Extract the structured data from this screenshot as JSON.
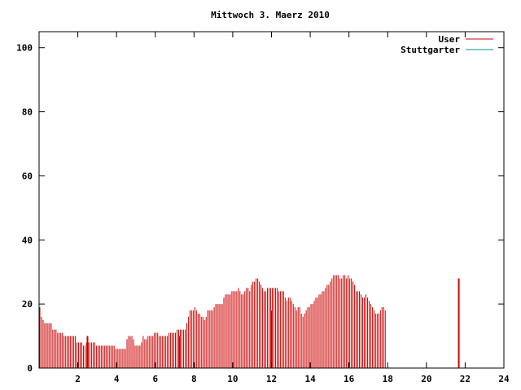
{
  "chart_data": {
    "type": "bar",
    "title": "Mittwoch 3. Maerz 2010",
    "xlabel": "",
    "ylabel": "",
    "xlim": [
      0,
      24
    ],
    "ylim": [
      0,
      105
    ],
    "x_ticks": [
      2,
      4,
      6,
      8,
      10,
      12,
      14,
      16,
      18,
      20,
      22,
      24
    ],
    "y_ticks": [
      0,
      20,
      40,
      60,
      80,
      100
    ],
    "x_tick_labels": [
      "2",
      "4",
      "6",
      "8",
      "10",
      "12",
      "14",
      "16",
      "18",
      "20",
      "22",
      "24"
    ],
    "y_tick_labels": [
      "0",
      "20",
      "40",
      "60",
      "80",
      "100"
    ],
    "legend_position": "top-right",
    "grid": false,
    "bar_interval_hours": 0.08333,
    "series": [
      {
        "name": "User",
        "color": "#cc0000",
        "values": [
          19,
          16,
          15,
          14,
          14,
          14,
          14,
          14,
          12,
          12,
          12,
          11,
          11,
          11,
          11,
          10,
          10,
          10,
          10,
          10,
          10,
          10,
          10,
          8,
          8,
          8,
          8,
          7,
          7,
          8,
          8,
          8,
          8,
          8,
          8,
          7,
          7,
          7,
          7,
          7,
          7,
          7,
          7,
          7,
          7,
          7,
          7,
          6,
          6,
          6,
          6,
          6,
          6,
          6,
          9,
          10,
          10,
          10,
          9,
          7,
          7,
          7,
          7,
          8,
          10,
          9,
          9,
          10,
          10,
          10,
          10,
          11,
          11,
          11,
          10,
          10,
          10,
          10,
          10,
          10,
          11,
          11,
          11,
          11,
          11,
          12,
          12,
          12,
          12,
          12,
          12,
          14,
          16,
          18,
          18,
          18,
          19,
          18,
          17,
          17,
          16,
          16,
          15,
          16,
          18,
          18,
          18,
          18,
          19,
          20,
          20,
          20,
          20,
          20,
          22,
          23,
          23,
          23,
          23,
          24,
          24,
          24,
          24,
          25,
          24,
          23,
          23,
          24,
          25,
          25,
          24,
          26,
          27,
          27,
          28,
          28,
          27,
          26,
          25,
          24,
          24,
          25,
          25,
          25,
          25,
          25,
          25,
          25,
          24,
          24,
          24,
          24,
          22,
          21,
          22,
          22,
          21,
          20,
          19,
          18,
          19,
          19,
          17,
          16,
          17,
          18,
          19,
          19,
          20,
          20,
          21,
          22,
          22,
          23,
          23,
          24,
          24,
          25,
          26,
          26,
          27,
          28,
          29,
          29,
          29,
          29,
          28,
          28,
          29,
          29,
          28,
          29,
          28,
          28,
          27,
          26,
          24,
          24,
          24,
          23,
          22,
          22,
          23,
          22,
          21,
          20,
          19,
          18,
          17,
          17,
          17,
          18,
          19,
          19,
          18
        ],
        "highlight_bars": [
          [
            2.5,
            10
          ],
          [
            7.25,
            10
          ],
          [
            12.0,
            18
          ],
          [
            21.67,
            28
          ]
        ]
      },
      {
        "name": "Stuttgarter",
        "color": "#008b8b",
        "values": []
      }
    ]
  }
}
